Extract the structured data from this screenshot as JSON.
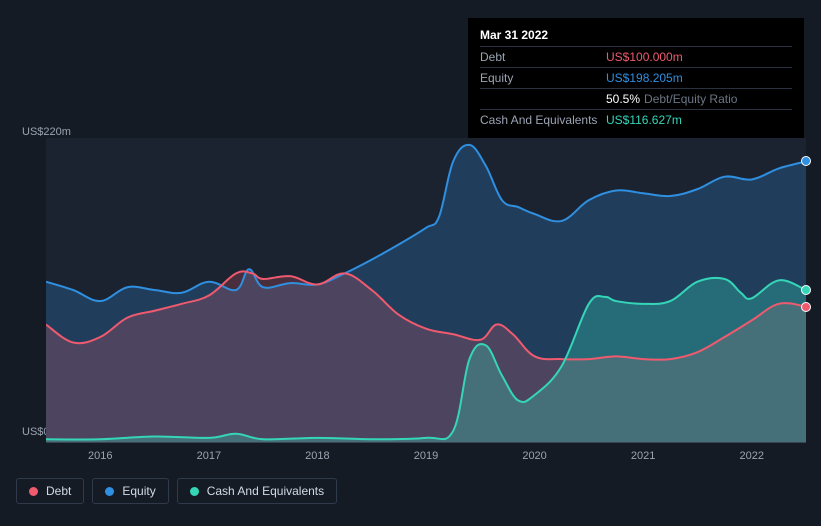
{
  "theme": {
    "bg": "#151b24",
    "plot_bg": "#1b2330",
    "grid": "#3a4554",
    "text": "#e5e7eb",
    "muted": "#9aa4b2",
    "muted2": "#6b7684"
  },
  "tooltip": {
    "date": "Mar 31 2022",
    "rows": [
      {
        "label": "Debt",
        "value": "US$100.000m",
        "cls": "debt"
      },
      {
        "label": "Equity",
        "value": "US$198.205m",
        "cls": "equity"
      },
      {
        "label": "",
        "ratio_val": "50.5%",
        "ratio_label": "Debt/Equity Ratio",
        "cls": "ratio"
      },
      {
        "label": "Cash And Equivalents",
        "value": "US$116.627m",
        "cls": "cash"
      }
    ]
  },
  "chart": {
    "type": "area",
    "y_max_label": "US$220m",
    "y_zero_label": "US$0",
    "y_max": 220,
    "x_range": [
      2015.5,
      2022.5
    ],
    "x_ticks": [
      2016,
      2017,
      2018,
      2019,
      2020,
      2021,
      2022
    ],
    "series": [
      {
        "name": "Equity",
        "color": "#2f8fe0",
        "fill_opacity": 0.25,
        "z": 1,
        "points": [
          [
            2015.5,
            116
          ],
          [
            2015.75,
            110
          ],
          [
            2016.0,
            102
          ],
          [
            2016.25,
            112
          ],
          [
            2016.5,
            110
          ],
          [
            2016.75,
            108
          ],
          [
            2017.0,
            116
          ],
          [
            2017.25,
            110
          ],
          [
            2017.37,
            125
          ],
          [
            2017.5,
            112
          ],
          [
            2017.75,
            115
          ],
          [
            2018.0,
            114
          ],
          [
            2018.25,
            122
          ],
          [
            2018.5,
            132
          ],
          [
            2018.75,
            143
          ],
          [
            2019.0,
            155
          ],
          [
            2019.12,
            163
          ],
          [
            2019.25,
            203
          ],
          [
            2019.4,
            215
          ],
          [
            2019.55,
            200
          ],
          [
            2019.7,
            175
          ],
          [
            2019.85,
            170
          ],
          [
            2020.0,
            165
          ],
          [
            2020.25,
            160
          ],
          [
            2020.5,
            175
          ],
          [
            2020.75,
            182
          ],
          [
            2021.0,
            180
          ],
          [
            2021.25,
            178
          ],
          [
            2021.5,
            183
          ],
          [
            2021.75,
            192
          ],
          [
            2022.0,
            190
          ],
          [
            2022.25,
            198
          ],
          [
            2022.5,
            203
          ]
        ]
      },
      {
        "name": "Debt",
        "color": "#ef5a6f",
        "fill_opacity": 0.22,
        "z": 2,
        "points": [
          [
            2015.5,
            85
          ],
          [
            2015.75,
            72
          ],
          [
            2016.0,
            76
          ],
          [
            2016.25,
            90
          ],
          [
            2016.5,
            95
          ],
          [
            2016.75,
            100
          ],
          [
            2017.0,
            106
          ],
          [
            2017.25,
            122
          ],
          [
            2017.4,
            122
          ],
          [
            2017.5,
            118
          ],
          [
            2017.75,
            120
          ],
          [
            2018.0,
            114
          ],
          [
            2018.25,
            122
          ],
          [
            2018.5,
            110
          ],
          [
            2018.75,
            92
          ],
          [
            2019.0,
            82
          ],
          [
            2019.25,
            78
          ],
          [
            2019.5,
            74
          ],
          [
            2019.65,
            85
          ],
          [
            2019.8,
            78
          ],
          [
            2020.0,
            62
          ],
          [
            2020.25,
            60
          ],
          [
            2020.5,
            60
          ],
          [
            2020.75,
            62
          ],
          [
            2021.0,
            60
          ],
          [
            2021.25,
            60
          ],
          [
            2021.5,
            65
          ],
          [
            2021.75,
            76
          ],
          [
            2022.0,
            88
          ],
          [
            2022.25,
            100
          ],
          [
            2022.5,
            98
          ]
        ]
      },
      {
        "name": "Cash And Equivalents",
        "color": "#35d6b8",
        "fill_opacity": 0.3,
        "z": 3,
        "points": [
          [
            2015.5,
            2
          ],
          [
            2016.0,
            2
          ],
          [
            2016.5,
            4
          ],
          [
            2017.0,
            3
          ],
          [
            2017.25,
            6
          ],
          [
            2017.5,
            2
          ],
          [
            2018.0,
            3
          ],
          [
            2018.5,
            2
          ],
          [
            2019.0,
            3
          ],
          [
            2019.25,
            8
          ],
          [
            2019.4,
            60
          ],
          [
            2019.55,
            70
          ],
          [
            2019.7,
            48
          ],
          [
            2019.85,
            30
          ],
          [
            2020.0,
            34
          ],
          [
            2020.25,
            55
          ],
          [
            2020.5,
            100
          ],
          [
            2020.65,
            105
          ],
          [
            2020.75,
            102
          ],
          [
            2021.0,
            100
          ],
          [
            2021.25,
            102
          ],
          [
            2021.5,
            116
          ],
          [
            2021.75,
            118
          ],
          [
            2021.9,
            108
          ],
          [
            2022.0,
            104
          ],
          [
            2022.25,
            117
          ],
          [
            2022.5,
            110
          ]
        ]
      }
    ],
    "end_markers": [
      {
        "series": "Equity",
        "color": "#2f8fe0",
        "x": 2022.5,
        "y": 203
      },
      {
        "series": "Debt",
        "color": "#ef5a6f",
        "x": 2022.5,
        "y": 98
      },
      {
        "series": "Cash And Equivalents",
        "color": "#35d6b8",
        "x": 2022.5,
        "y": 110
      }
    ]
  },
  "legend": {
    "items": [
      {
        "label": "Debt",
        "color": "#ef5a6f"
      },
      {
        "label": "Equity",
        "color": "#2f8fe0"
      },
      {
        "label": "Cash And Equivalents",
        "color": "#35d6b8"
      }
    ]
  }
}
